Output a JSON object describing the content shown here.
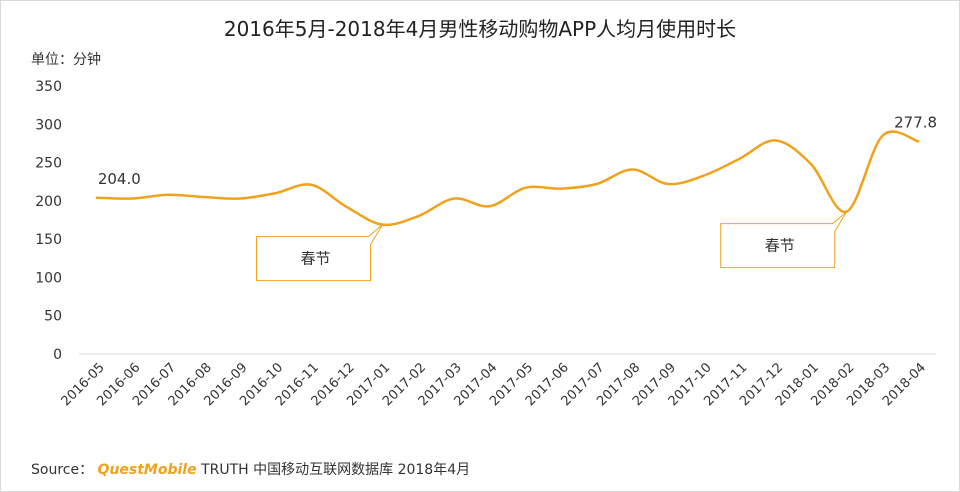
{
  "chart_data": {
    "type": "line",
    "title": "2016年5月-2018年4月男性移动购物APP人均月使用时长",
    "unit_label": "单位：分钟",
    "categories": [
      "2016-05",
      "2016-06",
      "2016-07",
      "2016-08",
      "2016-09",
      "2016-10",
      "2016-11",
      "2016-12",
      "2017-01",
      "2017-02",
      "2017-03",
      "2017-04",
      "2017-05",
      "2017-06",
      "2017-07",
      "2017-08",
      "2017-09",
      "2017-10",
      "2017-11",
      "2017-12",
      "2018-01",
      "2018-02",
      "2018-03",
      "2018-04"
    ],
    "series": [
      {
        "values": [
          204.0,
          203,
          208,
          205,
          203,
          210,
          221,
          192,
          169,
          180,
          203,
          193,
          217,
          216,
          222,
          241,
          222,
          233,
          255,
          279,
          248,
          186,
          285,
          277.8
        ]
      }
    ],
    "ylim": [
      0,
      350
    ],
    "yticks": [
      0,
      50,
      100,
      150,
      200,
      250,
      300,
      350
    ],
    "data_labels": [
      {
        "index": 0,
        "text": "204.0"
      },
      {
        "index": 23,
        "text": "277.8"
      }
    ],
    "annotations": [
      {
        "text": "春节",
        "target_index": 8,
        "placement": "below-left"
      },
      {
        "text": "春节",
        "target_index": 21,
        "placement": "below-left"
      }
    ],
    "line_color": "#f0a21c",
    "legend": "none"
  },
  "source": {
    "prefix": "Source：",
    "brand": "QuestMobile",
    "suffix": " TRUTH 中国移动互联网数据库 2018年4月"
  }
}
